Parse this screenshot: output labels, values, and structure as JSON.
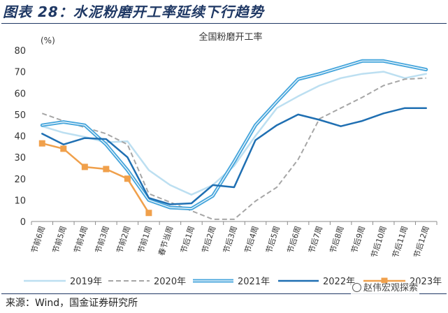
{
  "figure_title": "图表 28：水泥粉磨开工率延续下行趋势",
  "source_note": "来源：Wind，国金证券研究所",
  "watermark": "赵伟宏观探索",
  "watermark_icon": "wechat-icon",
  "chart_data": {
    "type": "line",
    "title": "全国粉磨开工率",
    "unit_label": "(%)",
    "ylim": [
      0,
      80
    ],
    "yticks": [
      0,
      10,
      20,
      30,
      40,
      50,
      60,
      70,
      80
    ],
    "grid": false,
    "legend_position": "bottom",
    "categories": [
      "节前6周",
      "节前5周",
      "节前4周",
      "节前3周",
      "节前2周",
      "节前1周",
      "春节当周",
      "节后1周",
      "节后2周",
      "节后3周",
      "节后4周",
      "节后5周",
      "节后6周",
      "节后7周",
      "节后8周",
      "节后9周",
      "节后10周",
      "节后11周",
      "节后12周"
    ],
    "series": [
      {
        "name": "2019年",
        "color": "#bcdff1",
        "dash": "solid",
        "width": 2.5,
        "double": false,
        "marker": false,
        "values": [
          44.5,
          41.5,
          39.5,
          37,
          37.5,
          24,
          17,
          12.5,
          17,
          26,
          40,
          53,
          58.5,
          63.5,
          67,
          69,
          70,
          67,
          69
        ]
      },
      {
        "name": "2020年",
        "color": "#a6a6a6",
        "dash": "dashed",
        "width": 2,
        "double": false,
        "marker": false,
        "values": [
          50.5,
          47,
          44,
          41,
          36,
          13,
          9,
          5,
          1,
          1,
          9.5,
          16,
          29,
          48,
          53,
          58,
          63.5,
          66.5,
          67
        ]
      },
      {
        "name": "2021年",
        "color": "#47a6dc",
        "dash": "solid",
        "width": 5,
        "double": true,
        "marker": false,
        "values": [
          45,
          46.5,
          45,
          36,
          24,
          10,
          6.5,
          6,
          12,
          28,
          45,
          56,
          66.5,
          69,
          72,
          75,
          75,
          73,
          71
        ]
      },
      {
        "name": "2022年",
        "color": "#1f6fb2",
        "dash": "solid",
        "width": 2.5,
        "double": false,
        "marker": false,
        "values": [
          41,
          36,
          39,
          38.5,
          30,
          11,
          8,
          8.5,
          17,
          16,
          38,
          45,
          50,
          47.5,
          44.5,
          47,
          50.5,
          53,
          53
        ]
      },
      {
        "name": "2023年",
        "color": "#f0a04b",
        "dash": "solid",
        "width": 2.5,
        "double": false,
        "marker": true,
        "values": [
          36.5,
          34,
          25.5,
          24.5,
          20,
          4,
          null,
          null,
          null,
          null,
          null,
          null,
          null,
          null,
          null,
          null,
          null,
          null,
          null
        ]
      }
    ]
  }
}
